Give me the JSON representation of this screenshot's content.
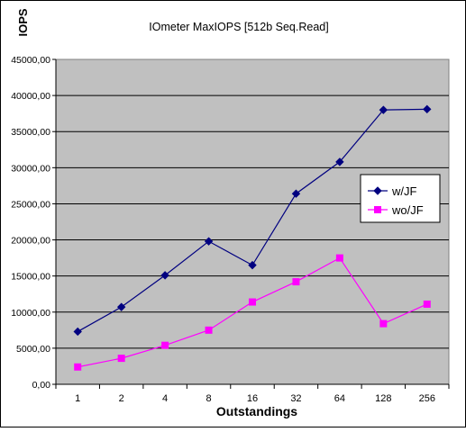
{
  "chart_data": {
    "type": "line",
    "title": "IOmeter MaxIOPS [512b Seq.Read]",
    "xlabel": "Outstandings",
    "ylabel": "IOPS",
    "categories": [
      "1",
      "2",
      "4",
      "8",
      "16",
      "32",
      "64",
      "128",
      "256"
    ],
    "ylim": [
      0,
      45000
    ],
    "yticks": [
      0,
      5000,
      10000,
      15000,
      20000,
      25000,
      30000,
      35000,
      40000,
      45000
    ],
    "ytick_labels": [
      "0,00",
      "5000,00",
      "10000,00",
      "15000,00",
      "20000,00",
      "25000,00",
      "30000,00",
      "35000,00",
      "40000,00",
      "45000,00"
    ],
    "grid": true,
    "legend_position": "right",
    "plot_background": "#c0c0c0",
    "series": [
      {
        "name": "w/JF",
        "color": "#000080",
        "marker": "diamond",
        "values": [
          7300,
          10700,
          15100,
          19800,
          16500,
          26400,
          30800,
          38000,
          38100
        ]
      },
      {
        "name": "wo/JF",
        "color": "#ff00ff",
        "marker": "square",
        "values": [
          2400,
          3600,
          5400,
          7500,
          11400,
          14200,
          17500,
          8400,
          11100
        ]
      }
    ]
  }
}
